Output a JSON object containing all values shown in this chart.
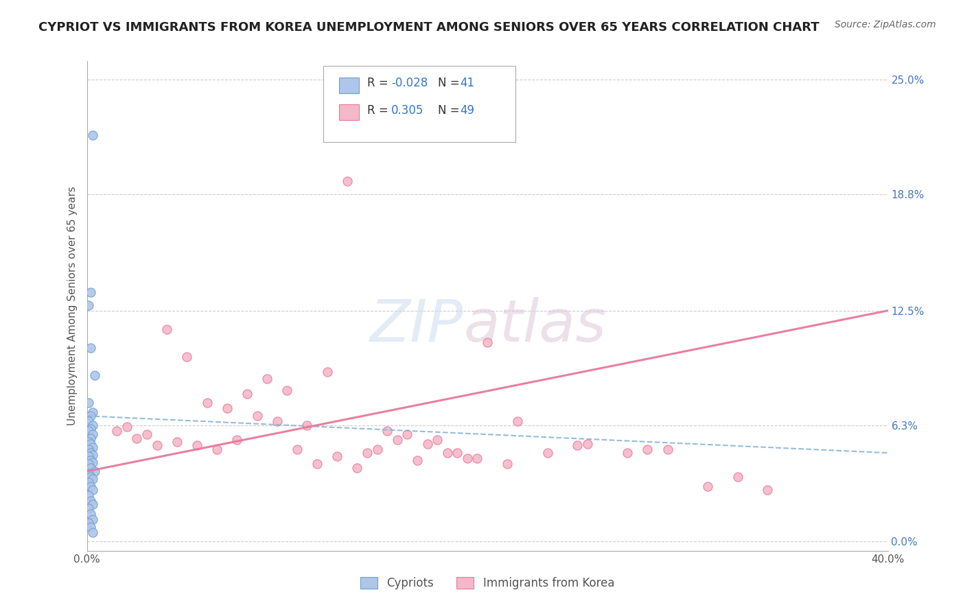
{
  "title": "CYPRIOT VS IMMIGRANTS FROM KOREA UNEMPLOYMENT AMONG SENIORS OVER 65 YEARS CORRELATION CHART",
  "source": "Source: ZipAtlas.com",
  "ylabel": "Unemployment Among Seniors over 65 years",
  "xlim": [
    0.0,
    0.4
  ],
  "ylim": [
    -0.005,
    0.26
  ],
  "ytick_positions": [
    0.0,
    0.063,
    0.125,
    0.188,
    0.25
  ],
  "ytick_labels_right": [
    "0.0%",
    "6.3%",
    "12.5%",
    "18.8%",
    "25.0%"
  ],
  "R_blue": -0.028,
  "N_blue": 41,
  "R_pink": 0.305,
  "N_pink": 49,
  "blue_color": "#aec6e8",
  "pink_color": "#f5b8c8",
  "blue_edge_color": "#6b9fd4",
  "pink_edge_color": "#e8789a",
  "blue_line_color": "#8ab4d8",
  "pink_line_color": "#e8789a",
  "grid_color": "#cccccc",
  "background_color": "#ffffff",
  "title_fontsize": 13,
  "axis_label_fontsize": 11,
  "tick_fontsize": 11,
  "legend_fontsize": 12,
  "source_fontsize": 10,
  "blue_scatter_x": [
    0.003,
    0.002,
    0.001,
    0.002,
    0.004,
    0.001,
    0.003,
    0.002,
    0.001,
    0.003,
    0.002,
    0.001,
    0.003,
    0.002,
    0.001,
    0.002,
    0.003,
    0.001,
    0.002,
    0.003,
    0.001,
    0.002,
    0.003,
    0.001,
    0.002,
    0.004,
    0.001,
    0.002,
    0.003,
    0.001,
    0.002,
    0.003,
    0.001,
    0.002,
    0.003,
    0.001,
    0.002,
    0.003,
    0.001,
    0.002,
    0.003
  ],
  "blue_scatter_y": [
    0.22,
    0.135,
    0.128,
    0.105,
    0.09,
    0.075,
    0.07,
    0.068,
    0.065,
    0.063,
    0.061,
    0.06,
    0.058,
    0.056,
    0.054,
    0.053,
    0.051,
    0.05,
    0.048,
    0.047,
    0.046,
    0.044,
    0.043,
    0.042,
    0.04,
    0.038,
    0.037,
    0.035,
    0.034,
    0.032,
    0.03,
    0.028,
    0.025,
    0.022,
    0.02,
    0.018,
    0.015,
    0.012,
    0.01,
    0.008,
    0.005
  ],
  "pink_scatter_x": [
    0.13,
    0.04,
    0.05,
    0.09,
    0.08,
    0.06,
    0.1,
    0.12,
    0.07,
    0.085,
    0.095,
    0.11,
    0.15,
    0.16,
    0.075,
    0.105,
    0.14,
    0.125,
    0.055,
    0.165,
    0.02,
    0.03,
    0.045,
    0.065,
    0.115,
    0.135,
    0.145,
    0.175,
    0.185,
    0.195,
    0.2,
    0.215,
    0.25,
    0.28,
    0.015,
    0.025,
    0.035,
    0.17,
    0.18,
    0.155,
    0.19,
    0.21,
    0.23,
    0.245,
    0.27,
    0.29,
    0.31,
    0.325,
    0.34
  ],
  "pink_scatter_y": [
    0.195,
    0.115,
    0.1,
    0.088,
    0.08,
    0.075,
    0.082,
    0.092,
    0.072,
    0.068,
    0.065,
    0.063,
    0.06,
    0.058,
    0.055,
    0.05,
    0.048,
    0.046,
    0.052,
    0.044,
    0.062,
    0.058,
    0.054,
    0.05,
    0.042,
    0.04,
    0.05,
    0.055,
    0.048,
    0.045,
    0.108,
    0.065,
    0.053,
    0.05,
    0.06,
    0.056,
    0.052,
    0.053,
    0.048,
    0.055,
    0.045,
    0.042,
    0.048,
    0.052,
    0.048,
    0.05,
    0.03,
    0.035,
    0.028
  ],
  "blue_trend_x": [
    0.0,
    0.4
  ],
  "blue_trend_y": [
    0.068,
    0.048
  ],
  "pink_trend_x": [
    0.0,
    0.4
  ],
  "pink_trend_y": [
    0.038,
    0.125
  ]
}
